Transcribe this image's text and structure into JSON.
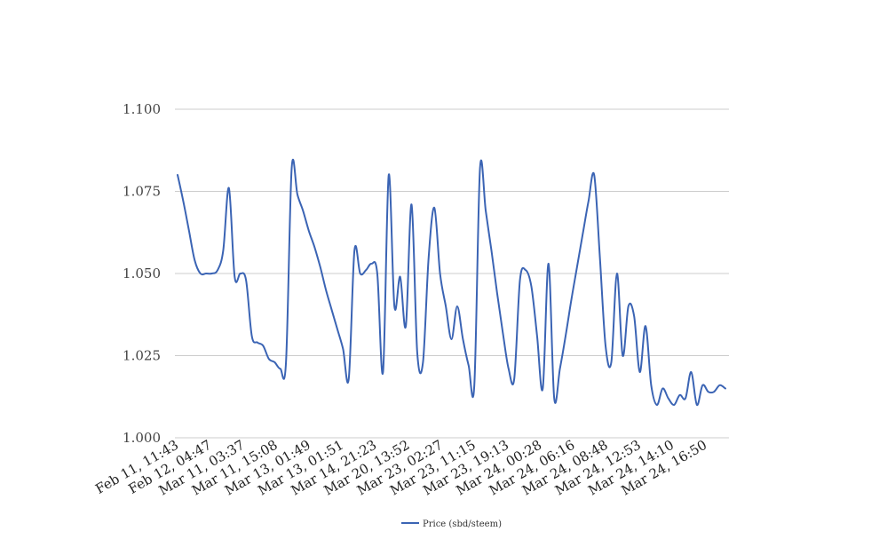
{
  "chart_data": {
    "type": "line",
    "title": "",
    "xlabel": "",
    "ylabel": "",
    "ylim": [
      1.0,
      1.1
    ],
    "yticks": [
      "1.000",
      "1.025",
      "1.050",
      "1.075",
      "1.100"
    ],
    "grid": true,
    "legend_position": "bottom",
    "xtick_labels": [
      "Feb 11, 11:43",
      "Feb 12, 04:47",
      "Mar 11, 03:37",
      "Mar 11, 15:08",
      "Mar 13, 01:49",
      "Mar 13, 01:51",
      "Mar 14, 21:23",
      "Mar 20, 13:52",
      "Mar 23, 02:27",
      "Mar 23, 11:15",
      "Mar 23, 19:13",
      "Mar 24, 00:28",
      "Mar 24, 06:16",
      "Mar 24, 08:48",
      "Mar 24, 12:53",
      "Mar 24, 14:10",
      "Mar 24, 16:50"
    ],
    "series": [
      {
        "name": "Price (sbd/steem)",
        "color": "#3b64b4",
        "values": [
          1.08,
          1.072,
          1.063,
          1.054,
          1.05,
          1.05,
          1.05,
          1.051,
          1.057,
          1.076,
          1.049,
          1.05,
          1.048,
          1.031,
          1.029,
          1.028,
          1.024,
          1.023,
          1.021,
          1.023,
          1.082,
          1.074,
          1.069,
          1.063,
          1.058,
          1.052,
          1.045,
          1.039,
          1.033,
          1.027,
          1.018,
          1.057,
          1.05,
          1.051,
          1.053,
          1.05,
          1.02,
          1.08,
          1.04,
          1.049,
          1.034,
          1.071,
          1.026,
          1.023,
          1.055,
          1.07,
          1.05,
          1.04,
          1.03,
          1.04,
          1.03,
          1.022,
          1.016,
          1.082,
          1.069,
          1.057,
          1.044,
          1.032,
          1.021,
          1.018,
          1.048,
          1.051,
          1.046,
          1.031,
          1.015,
          1.053,
          1.012,
          1.021,
          1.031,
          1.042,
          1.052,
          1.062,
          1.072,
          1.08,
          1.055,
          1.028,
          1.023,
          1.05,
          1.025,
          1.04,
          1.037,
          1.02,
          1.034,
          1.016,
          1.01,
          1.015,
          1.012,
          1.01,
          1.013,
          1.012,
          1.02,
          1.01,
          1.016,
          1.014,
          1.014,
          1.016,
          1.015
        ]
      }
    ]
  }
}
